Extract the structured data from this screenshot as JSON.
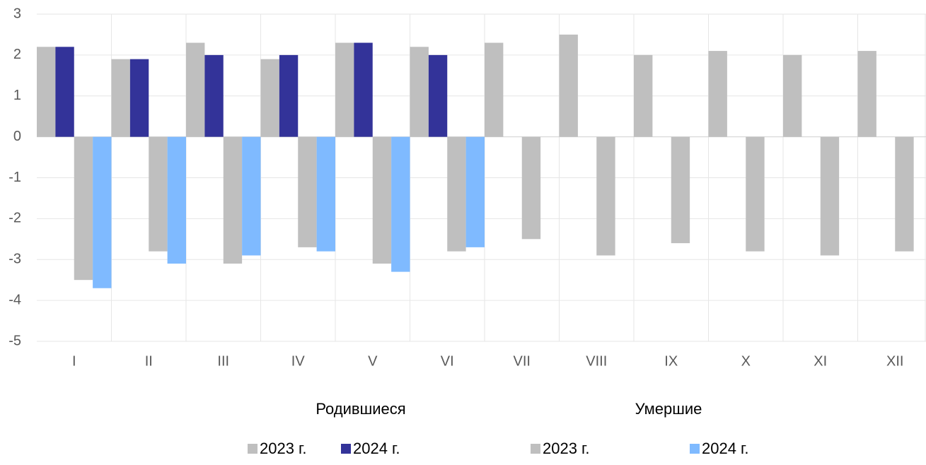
{
  "chart_data": {
    "type": "bar",
    "categories": [
      "I",
      "II",
      "III",
      "IV",
      "V",
      "VI",
      "VII",
      "VIII",
      "IX",
      "X",
      "XI",
      "XII"
    ],
    "series": [
      {
        "name": "2023 г.",
        "color": "#bfbfbf",
        "values": [
          2.2,
          1.9,
          2.3,
          1.9,
          2.3,
          2.2,
          2.3,
          2.5,
          2.0,
          2.1,
          2.0,
          2.1
        ]
      },
      {
        "name": "2024 г.",
        "color": "#333399",
        "values": [
          2.2,
          1.9,
          2.0,
          2.0,
          2.3,
          2.0,
          null,
          null,
          null,
          null,
          null,
          null
        ]
      },
      {
        "name": "2023 г.",
        "color": "#bfbfbf",
        "values": [
          -3.5,
          -2.8,
          -3.1,
          -2.7,
          -3.1,
          -2.8,
          -2.5,
          -2.9,
          -2.6,
          -2.8,
          -2.9,
          -2.8
        ]
      },
      {
        "name": "2024 г.",
        "color": "#7fbaff",
        "values": [
          -3.7,
          -3.1,
          -2.9,
          -2.8,
          -3.3,
          -2.7,
          null,
          null,
          null,
          null,
          null,
          null
        ]
      }
    ],
    "group_labels": [
      "Родившиеся",
      "Умершие"
    ],
    "ylim": [
      -5,
      3
    ],
    "yticks": [
      3,
      2,
      1,
      0,
      -1,
      -2,
      -3,
      -4,
      -5
    ],
    "grid": true,
    "legend": "bottom"
  }
}
